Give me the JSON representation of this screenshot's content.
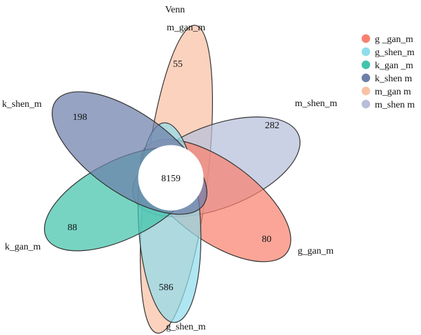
{
  "chart_data": {
    "type": "venn",
    "title": "Venn",
    "center_value": "8159",
    "sets": [
      {
        "name": "m_gan_m",
        "unique_value": "55",
        "color": "#F9C1A5",
        "legend_label": "m_gan m"
      },
      {
        "name": "m_shen_m",
        "unique_value": "282",
        "color": "#B7BFD9",
        "legend_label": "m_shen m"
      },
      {
        "name": "g_gan_m",
        "unique_value": "80",
        "color": "#F8826F",
        "legend_label": "g _gan_m"
      },
      {
        "name": "g_shen_m",
        "unique_value": "586",
        "color": "#90DCEC",
        "legend_label": "g_shen_m"
      },
      {
        "name": "k_gan_m",
        "unique_value": "88",
        "color": "#43C4AA",
        "legend_label": "k_gan _m"
      },
      {
        "name": "k_shen_m",
        "unique_value": "198",
        "color": "#6E80AA",
        "legend_label": "k_shen m"
      }
    ],
    "legend_order": [
      "g_gan_m",
      "g_shen_m",
      "k_gan_m",
      "k_shen_m",
      "m_gan_m",
      "m_shen_m"
    ]
  }
}
